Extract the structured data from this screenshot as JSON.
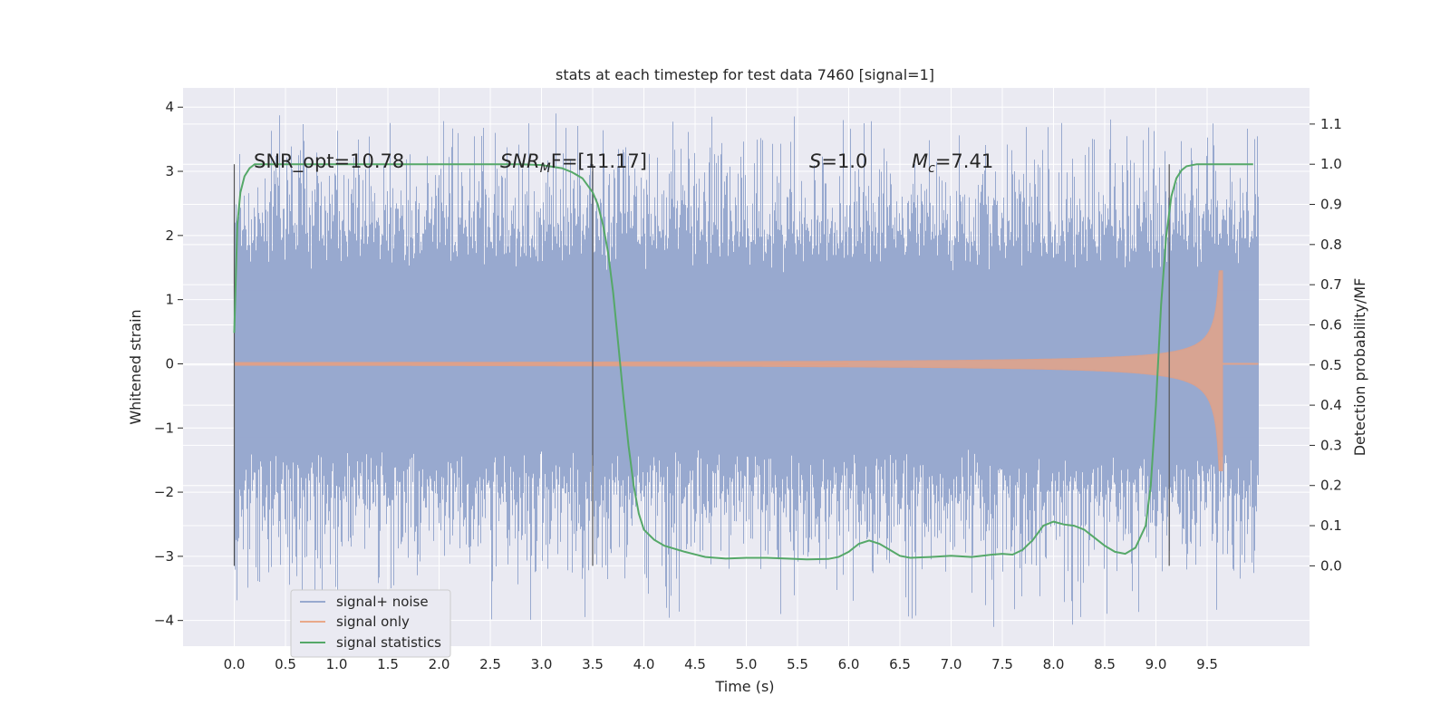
{
  "chart_data": {
    "type": "line",
    "title": "stats at each timestep for test data 7460 [signal=1]",
    "xlabel": "Time (s)",
    "ylabel_left": "Whitened strain",
    "ylabel_right": "Detection probability/MF",
    "xlim": [
      -0.5,
      10.5
    ],
    "ylim_left": [
      -4.4,
      4.3
    ],
    "ylim_right": [
      -0.2,
      1.19
    ],
    "x_ticks": [
      "0.0",
      "0.5",
      "1.0",
      "1.5",
      "2.0",
      "2.5",
      "3.0",
      "3.5",
      "4.0",
      "4.5",
      "5.0",
      "5.5",
      "6.0",
      "6.5",
      "7.0",
      "7.5",
      "8.0",
      "8.5",
      "9.0",
      "9.5"
    ],
    "y_ticks_left": [
      "4",
      "3",
      "2",
      "1",
      "0",
      "−1",
      "−2",
      "−3",
      "−4"
    ],
    "y_ticks_right": [
      "1.1",
      "1.0",
      "0.9",
      "0.8",
      "0.7",
      "0.6",
      "0.5",
      "0.4",
      "0.3",
      "0.2",
      "0.1",
      "0.0"
    ],
    "grid": true,
    "legend_position": "lower-left",
    "legend": [
      "signal+ noise",
      "signal only",
      "signal statistics"
    ],
    "colors": {
      "noise": "#98a9cf",
      "signal": "#dd8452",
      "stats": "#55a868",
      "background": "#eaeaf2",
      "grid": "#ffffff",
      "vline": "#555555"
    },
    "annotations": {
      "snr_opt": "SNR_opt=10.78",
      "snr_mf_base": "SNR",
      "snr_mf_sub": "M",
      "snr_mf_rest": "F=[11.17]",
      "s_label": "S",
      "s_value": "=1.0",
      "mc_base": "M",
      "mc_sub": "c",
      "mc_value": "=7.41"
    },
    "vertical_markers_x": [
      0.0,
      3.5,
      9.13
    ],
    "series": [
      {
        "name": "signal+ noise",
        "x_range": [
          0.0,
          10.0
        ],
        "envelope_typical": [
          -2.3,
          2.5
        ],
        "envelope_extreme": [
          -4.1,
          3.9
        ]
      },
      {
        "name": "signal only",
        "x_range": [
          0.0,
          10.0
        ],
        "chirp_peak_time": 9.65,
        "peak_amplitude": 1.45
      },
      {
        "name": "signal statistics",
        "x": [
          0.0,
          0.03,
          0.06,
          0.1,
          0.15,
          0.2,
          0.3,
          0.5,
          1.0,
          1.5,
          2.0,
          2.5,
          2.8,
          3.0,
          3.2,
          3.3,
          3.4,
          3.5,
          3.55,
          3.6,
          3.65,
          3.7,
          3.75,
          3.8,
          3.85,
          3.9,
          3.95,
          4.0,
          4.1,
          4.2,
          4.4,
          4.6,
          4.8,
          5.0,
          5.2,
          5.4,
          5.6,
          5.8,
          5.9,
          6.0,
          6.1,
          6.2,
          6.3,
          6.4,
          6.5,
          6.6,
          6.8,
          7.0,
          7.2,
          7.4,
          7.5,
          7.6,
          7.7,
          7.8,
          7.9,
          8.0,
          8.1,
          8.2,
          8.3,
          8.4,
          8.5,
          8.6,
          8.7,
          8.8,
          8.9,
          8.95,
          9.0,
          9.05,
          9.1,
          9.15,
          9.2,
          9.25,
          9.3,
          9.4,
          9.5,
          9.7,
          9.95
        ],
        "values": [
          0.58,
          0.85,
          0.93,
          0.97,
          0.99,
          1.0,
          1.0,
          1.0,
          1.0,
          1.0,
          1.0,
          1.0,
          1.0,
          0.998,
          0.99,
          0.98,
          0.965,
          0.93,
          0.9,
          0.85,
          0.78,
          0.68,
          0.55,
          0.42,
          0.3,
          0.2,
          0.13,
          0.09,
          0.065,
          0.05,
          0.035,
          0.022,
          0.018,
          0.02,
          0.02,
          0.018,
          0.016,
          0.017,
          0.022,
          0.035,
          0.055,
          0.063,
          0.055,
          0.04,
          0.025,
          0.02,
          0.022,
          0.025,
          0.022,
          0.028,
          0.03,
          0.028,
          0.04,
          0.065,
          0.1,
          0.11,
          0.103,
          0.1,
          0.09,
          0.07,
          0.05,
          0.035,
          0.03,
          0.045,
          0.1,
          0.2,
          0.4,
          0.65,
          0.82,
          0.92,
          0.965,
          0.985,
          0.995,
          1.0,
          1.0,
          1.0,
          1.0
        ]
      }
    ]
  }
}
